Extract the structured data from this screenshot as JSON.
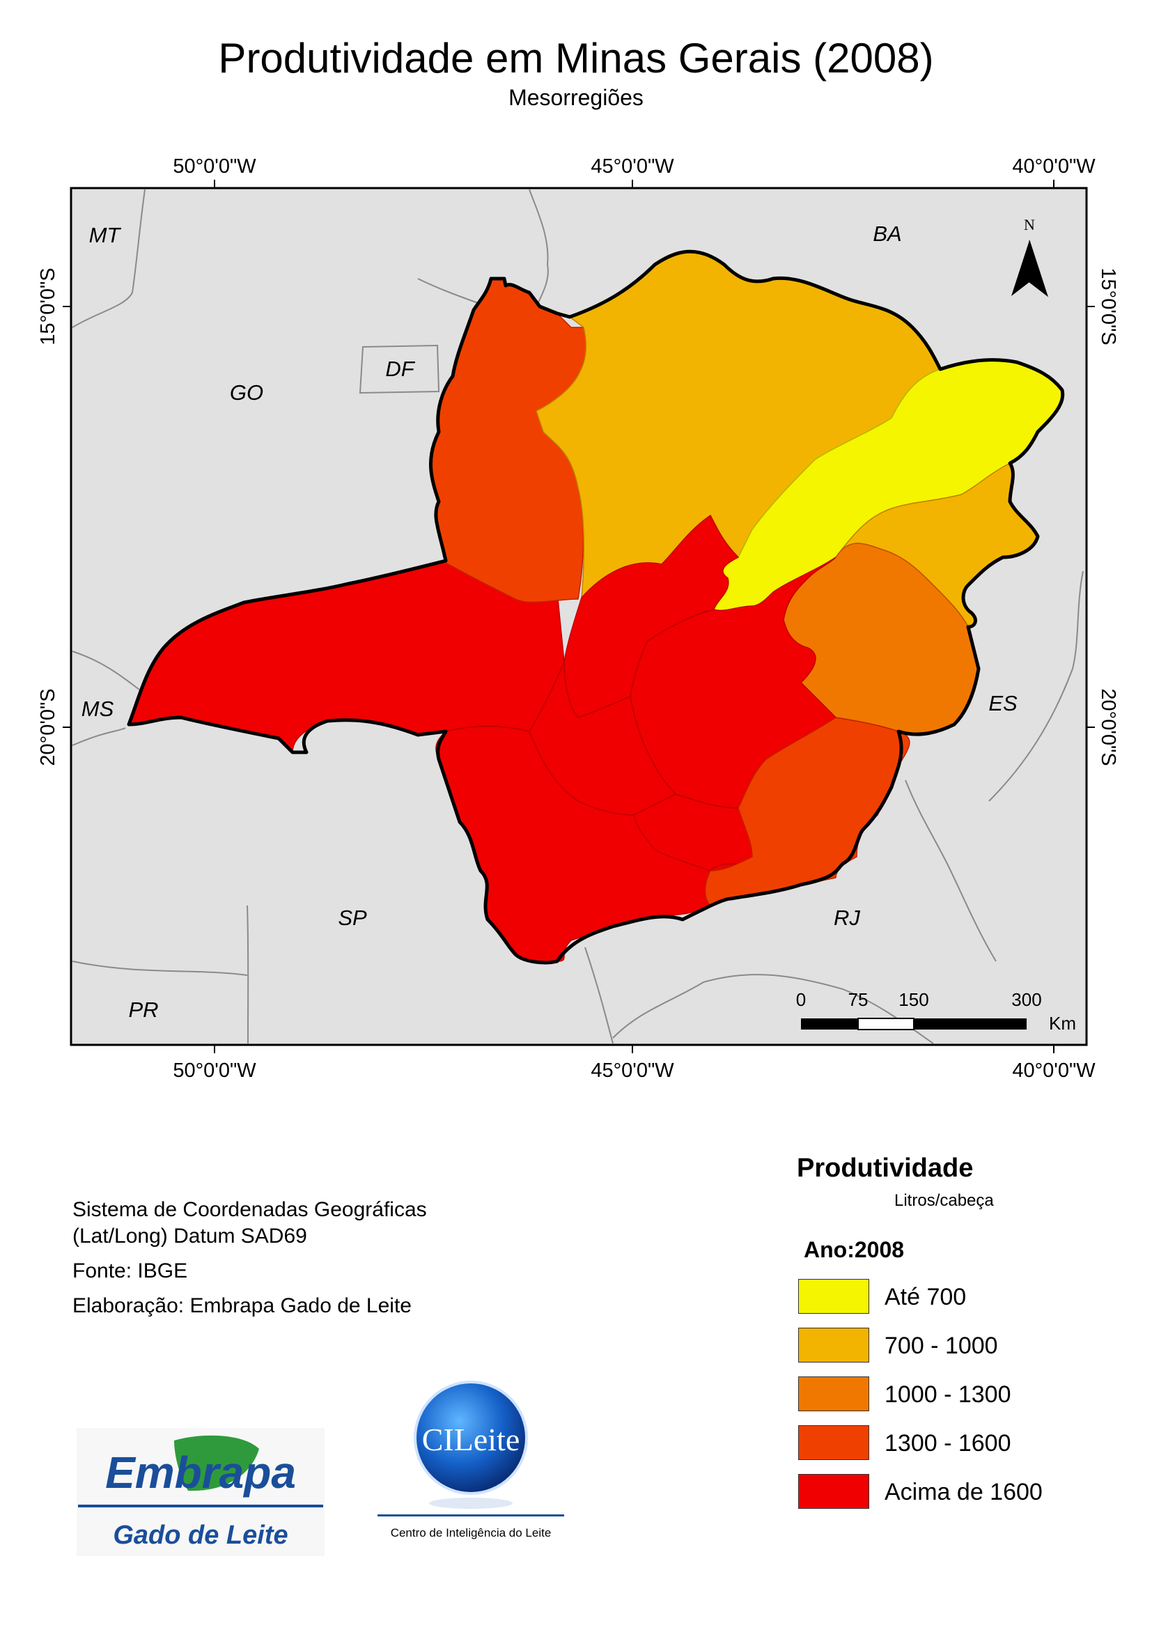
{
  "title": "Produtividade em Minas Gerais (2008)",
  "subtitle": "Mesorregiões",
  "graticule": {
    "top_lon_labels": [
      "50°0'0\"W",
      "45°0'0\"W",
      "40°0'0\"W"
    ],
    "bottom_lon_labels": [
      "50°0'0\"W",
      "45°0'0\"W",
      "40°0'0\"W"
    ],
    "left_lat_labels": [
      "15°0'0\"S",
      "20°0'0\"S"
    ],
    "right_lat_labels": [
      "15°0'0\"S",
      "20°0'0\"S"
    ]
  },
  "state_labels": [
    "MT",
    "BA",
    "GO",
    "DF",
    "MS",
    "ES",
    "SP",
    "RJ",
    "PR"
  ],
  "north_arrow": {
    "label": "N"
  },
  "scale_bar": {
    "ticks": [
      "0",
      "75",
      "150",
      "300"
    ],
    "unit": "Km"
  },
  "notes": {
    "line1": "Sistema de Coordenadas Geográficas",
    "line2": "(Lat/Long) Datum SAD69",
    "line3": "Fonte: IBGE",
    "line4": "Elaboração: Embrapa Gado de Leite"
  },
  "legend": {
    "title": "Produtividade",
    "unit": "Litros/cabeça",
    "year": "Ano:2008",
    "items": [
      {
        "label": "Até 700",
        "color": "#f5f500"
      },
      {
        "label": "700 - 1000",
        "color": "#f2b400"
      },
      {
        "label": "1000 - 1300",
        "color": "#f07800"
      },
      {
        "label": "1300 - 1600",
        "color": "#f04000"
      },
      {
        "label": "Acima de 1600",
        "color": "#f00000"
      }
    ]
  },
  "logos": {
    "embrapa_top": "Embrapa",
    "embrapa_bottom": "Gado de Leite",
    "cileite_name": "CILeite",
    "cileite_caption": "Centro de Inteligência do Leite"
  },
  "colors": {
    "background_land": "#e1e1e1",
    "boundary": "#000000",
    "embrapa_blue": "#1a4e9a",
    "embrapa_green": "#2f9a3c"
  }
}
